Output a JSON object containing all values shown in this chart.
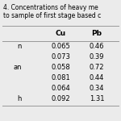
{
  "title_line1": "4. Concentrations of heavy me",
  "title_line2": "to sample of first stage based c",
  "col_headers": [
    "Cu",
    "Pb"
  ],
  "row_labels": [
    "n",
    "",
    "an",
    "",
    "",
    "h"
  ],
  "rows": [
    [
      "0.065",
      "0.46"
    ],
    [
      "0.073",
      "0.39"
    ],
    [
      "0.058",
      "0.72"
    ],
    [
      "0.081",
      "0.44"
    ],
    [
      "0.064",
      "0.34"
    ],
    [
      "0.092",
      "1.31"
    ]
  ],
  "background_color": "#ebebeb",
  "title_fontsize": 5.5,
  "header_fontsize": 6.5,
  "cell_fontsize": 6.0,
  "row_label_fontsize": 6.0
}
